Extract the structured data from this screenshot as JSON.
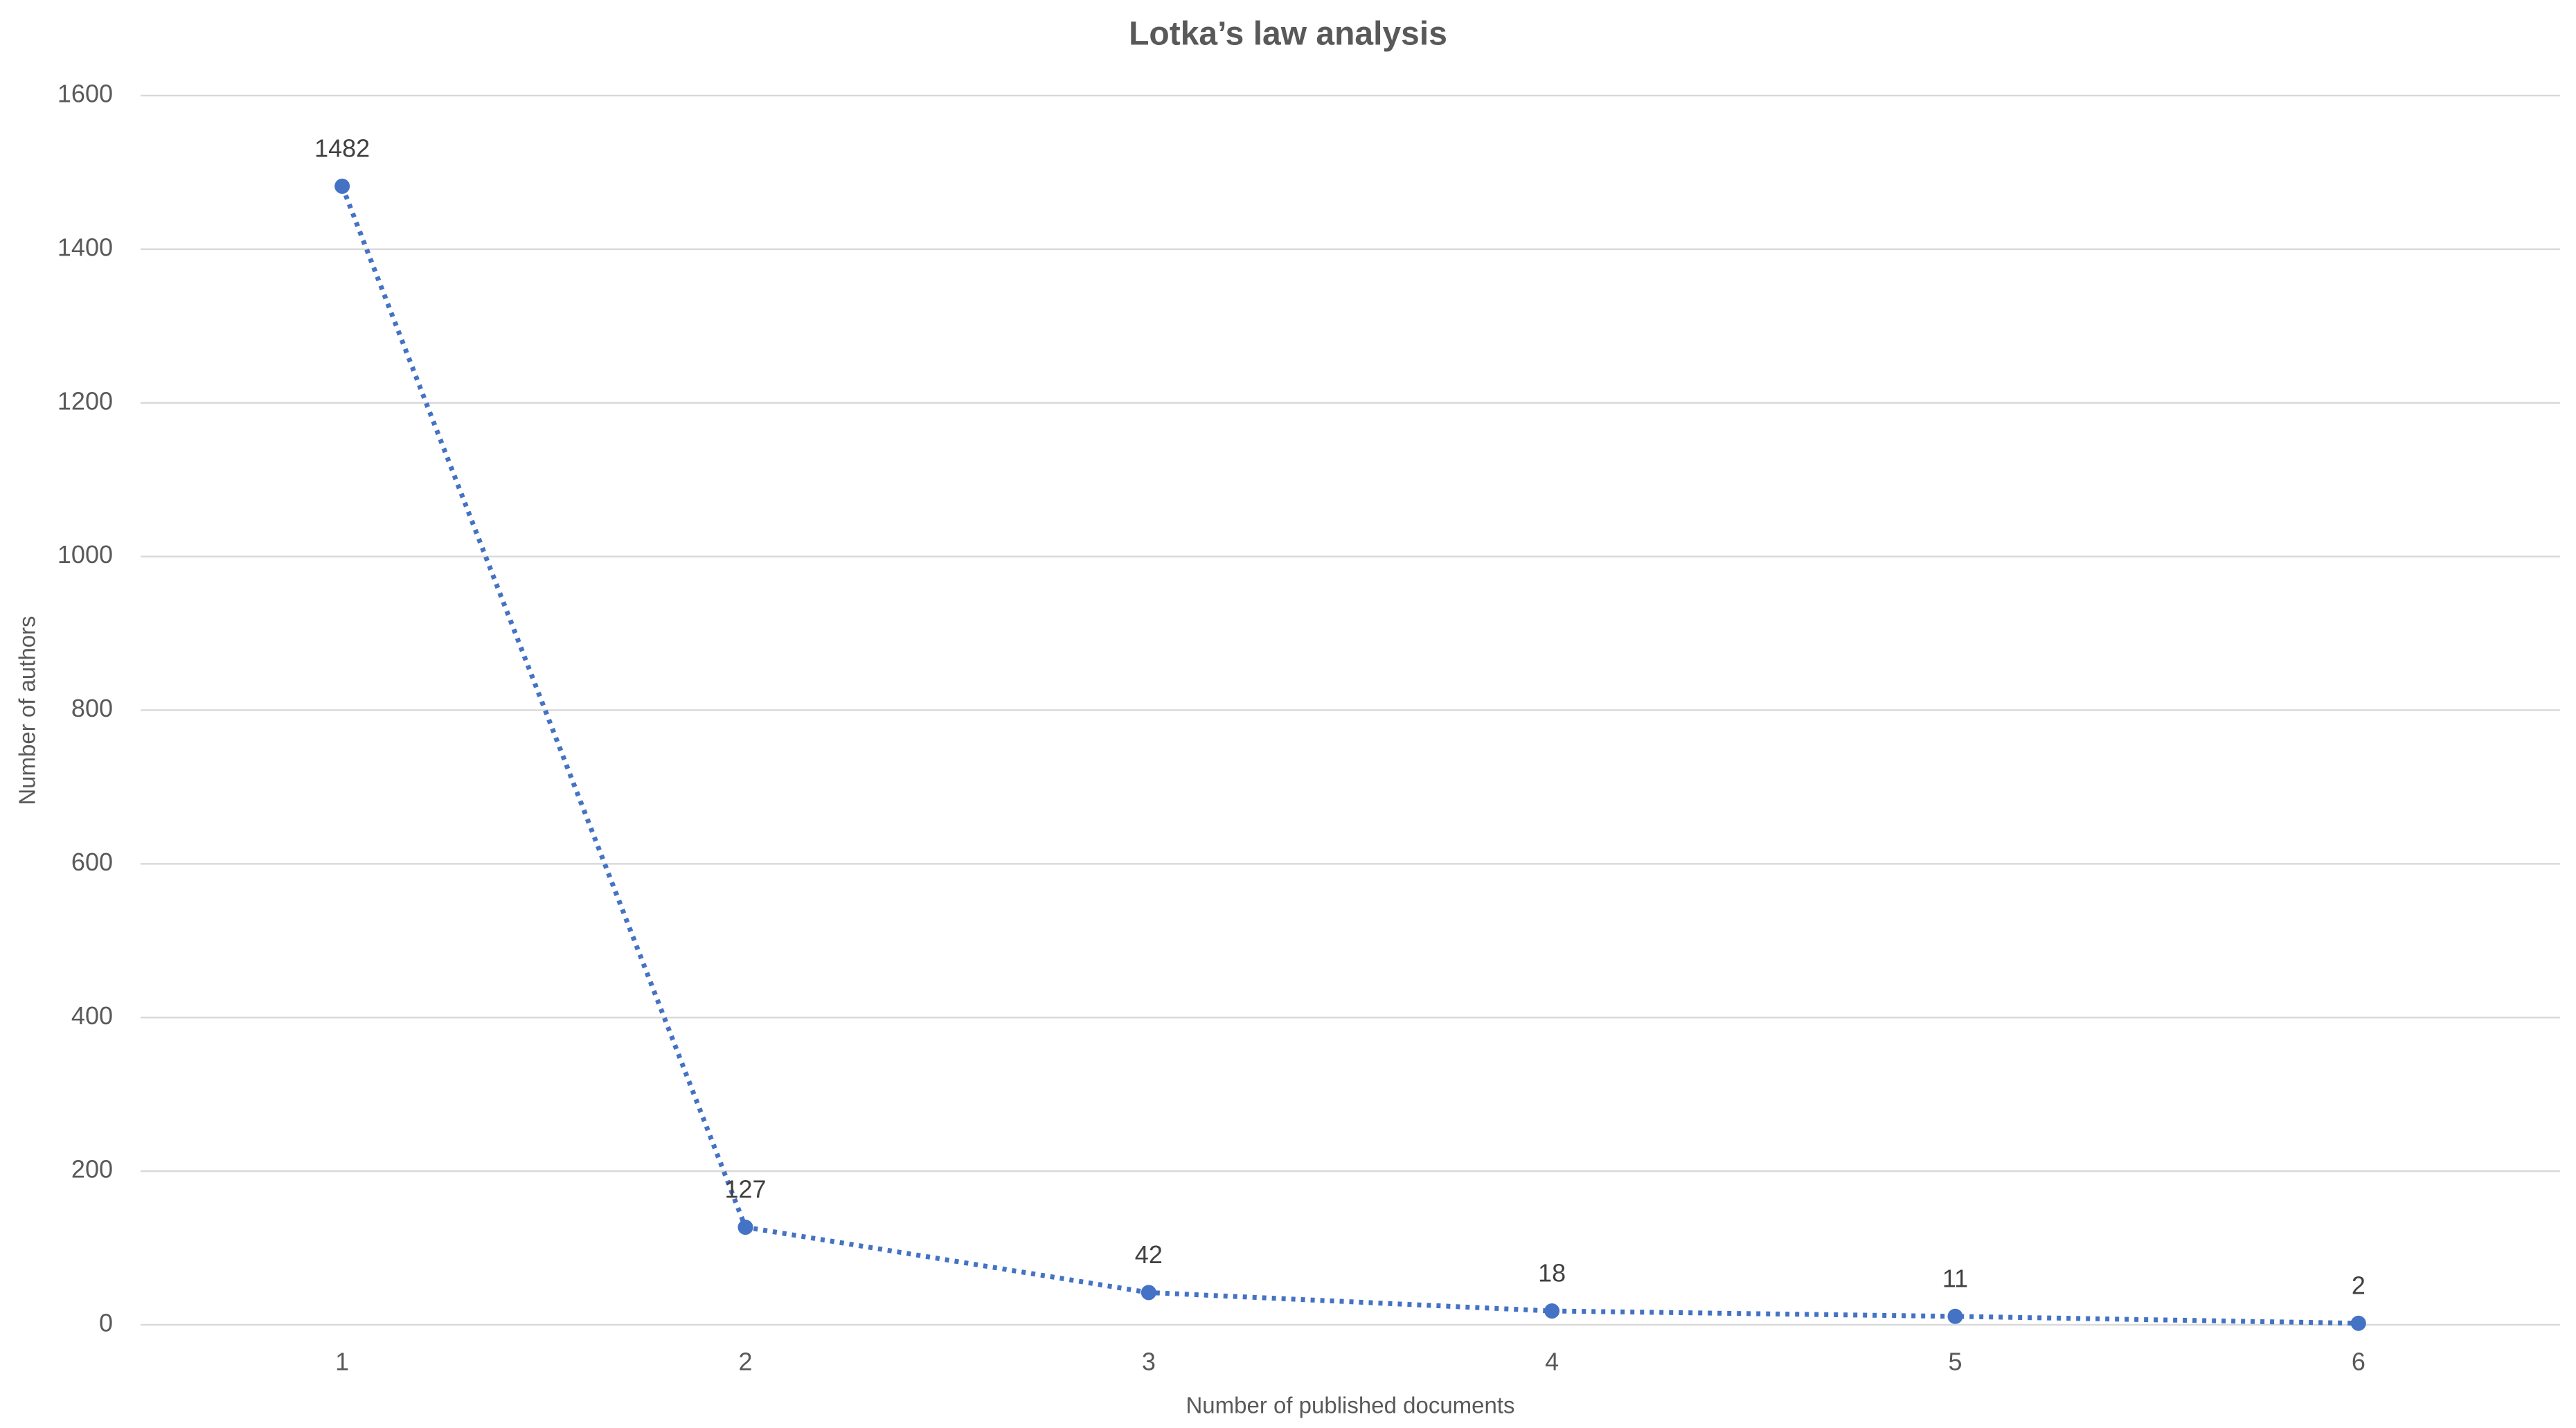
{
  "chart_data": {
    "type": "line",
    "title": "Lotka’s law analysis",
    "x_label": "Number of published documents",
    "y_label": "Number of authors",
    "categories": [
      "1",
      "2",
      "3",
      "4",
      "5",
      "6"
    ],
    "values": [
      1482,
      127,
      42,
      18,
      11,
      2
    ],
    "color": "#4472c4",
    "ylim": [
      0,
      1600
    ],
    "yticks": [
      0,
      200,
      400,
      600,
      800,
      1000,
      1200,
      1400,
      1600
    ],
    "grid": true,
    "line_style": "dotted",
    "markers": true,
    "data_labels": true
  }
}
